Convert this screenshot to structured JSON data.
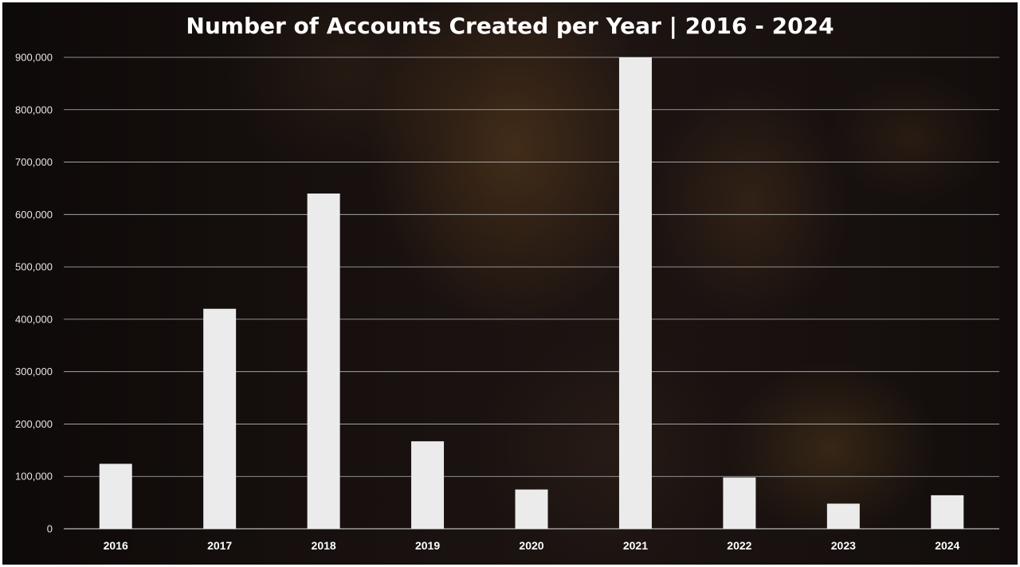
{
  "chart_data": {
    "type": "bar",
    "title": "Number of Accounts Created per Year | 2016 - 2024",
    "xlabel": "",
    "ylabel": "",
    "categories": [
      "2016",
      "2017",
      "2018",
      "2019",
      "2020",
      "2021",
      "2022",
      "2023",
      "2024"
    ],
    "values": [
      124000,
      420000,
      640000,
      167000,
      75000,
      901000,
      98000,
      48000,
      64000
    ],
    "ylim": [
      0,
      900000
    ],
    "yticks": [
      0,
      100000,
      200000,
      300000,
      400000,
      500000,
      600000,
      700000,
      800000,
      900000
    ],
    "ytick_labels": [
      "0",
      "100,000",
      "200,000",
      "300,000",
      "400,000",
      "500,000",
      "600,000",
      "700,000",
      "800,000",
      "900,000"
    ],
    "grid": true,
    "legend": "none",
    "colors": {
      "bar": "#ebebeb",
      "gridline": "#b9b9b9",
      "text": "#ffffff",
      "background": "#161010"
    }
  }
}
